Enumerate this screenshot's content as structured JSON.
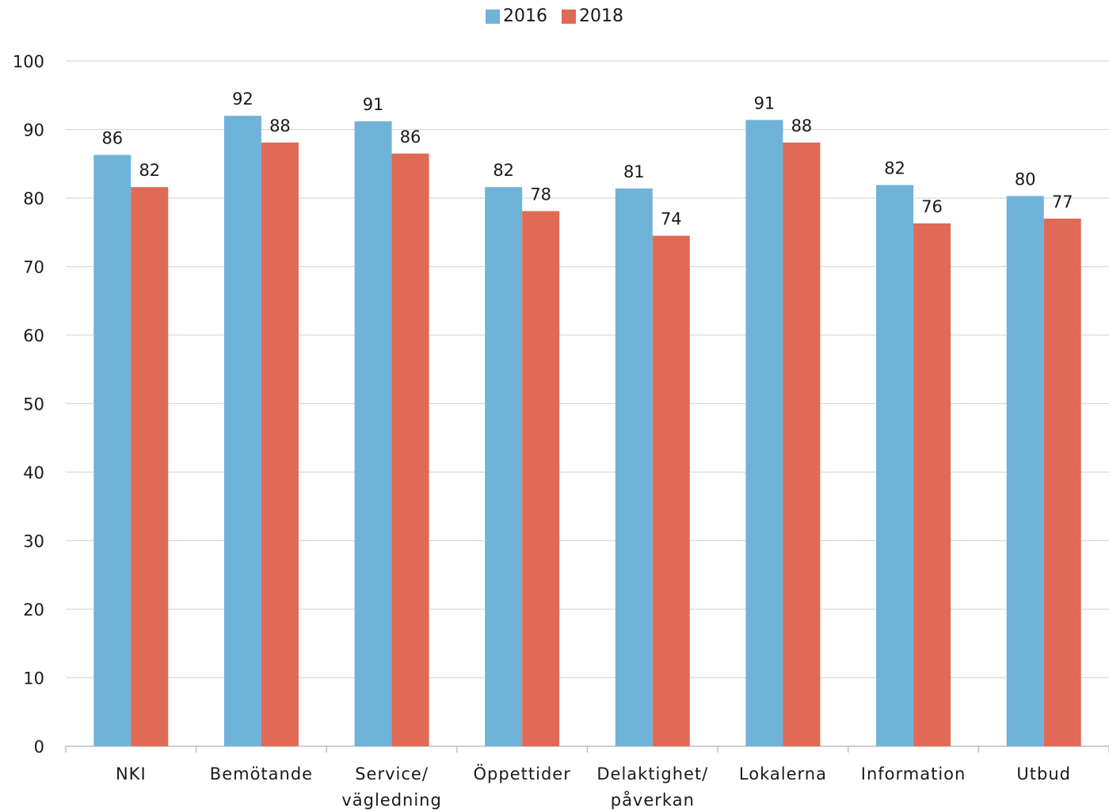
{
  "colors": {
    "s2016": "#70b3d9",
    "s2018": "#e06a55",
    "grid": "#d9d9d9",
    "axis": "#bfbfbf"
  },
  "chart_data": {
    "type": "bar",
    "title": "",
    "xlabel": "",
    "ylabel": "",
    "ylim": [
      0,
      100
    ],
    "yticks": [
      0,
      10,
      20,
      30,
      40,
      50,
      60,
      70,
      80,
      90,
      100
    ],
    "grid": true,
    "legend_position": "top-center",
    "categories": [
      [
        "NKI"
      ],
      [
        "Bemötande"
      ],
      [
        "Service/",
        "vägledning"
      ],
      [
        "Öppettider"
      ],
      [
        "Delaktighet/",
        "påverkan"
      ],
      [
        "Lokalerna"
      ],
      [
        "Information"
      ],
      [
        "Utbud"
      ]
    ],
    "series": [
      {
        "name": "2016",
        "values": [
          86.3,
          92,
          91.2,
          81.6,
          81.4,
          91.4,
          81.9,
          80.3
        ],
        "labels": [
          "86",
          "92",
          "91",
          "82",
          "81",
          "91",
          "82",
          "80"
        ]
      },
      {
        "name": "2018",
        "values": [
          81.6,
          88.1,
          86.5,
          78.1,
          74.5,
          88.1,
          76.3,
          77.0
        ],
        "labels": [
          "82",
          "88",
          "86",
          "78",
          "74",
          "88",
          "76",
          "77"
        ]
      }
    ]
  }
}
